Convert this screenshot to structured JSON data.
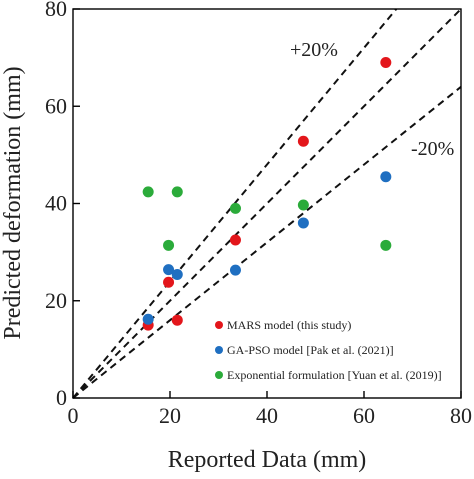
{
  "chart_data": {
    "type": "scatter",
    "xlabel": "Reported Data (mm)",
    "ylabel": "Predicted deformation (mm)",
    "xlim": [
      0,
      80
    ],
    "ylim": [
      0,
      80
    ],
    "xticks": [
      0,
      20,
      40,
      60,
      80
    ],
    "yticks": [
      0,
      20,
      40,
      60,
      80
    ],
    "grid": false,
    "legend_position": "bottom-right",
    "series": [
      {
        "name": "MARS model (this study)",
        "color": "#e3161b",
        "points": [
          [
            15.5,
            15.0
          ],
          [
            21.5,
            16.0
          ],
          [
            19.7,
            23.8
          ],
          [
            33.5,
            32.5
          ],
          [
            47.5,
            52.8
          ],
          [
            64.5,
            69.0
          ]
        ]
      },
      {
        "name": "GA-PSO model [Pak et al. (2021)]",
        "color": "#1f6fc1",
        "points": [
          [
            15.5,
            16.2
          ],
          [
            19.7,
            26.4
          ],
          [
            21.5,
            25.4
          ],
          [
            33.5,
            26.3
          ],
          [
            47.5,
            36.0
          ],
          [
            64.5,
            45.5
          ]
        ]
      },
      {
        "name": "Exponential formulation [Yuan et al. (2019)]",
        "color": "#2bab3a",
        "points": [
          [
            15.5,
            42.4
          ],
          [
            21.5,
            42.4
          ],
          [
            19.7,
            31.4
          ],
          [
            33.5,
            39.0
          ],
          [
            47.5,
            39.7
          ],
          [
            64.5,
            31.4
          ]
        ]
      }
    ],
    "reference_lines": [
      {
        "label": "+20%",
        "slope": 1.2
      },
      {
        "label": "",
        "slope": 1.0
      },
      {
        "label": "-20%",
        "slope": 0.8
      }
    ]
  }
}
